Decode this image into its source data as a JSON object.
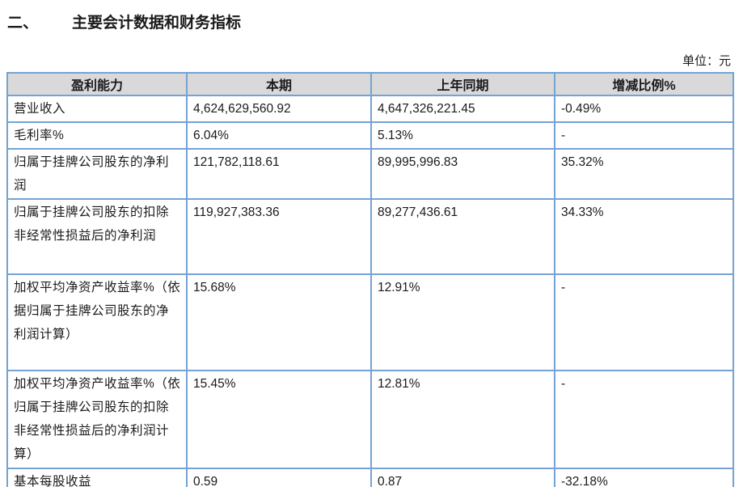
{
  "heading": {
    "number": "二、",
    "title": "主要会计数据和财务指标",
    "unit_label": "单位：元"
  },
  "table": {
    "headers": [
      "盈利能力",
      "本期",
      "上年同期",
      "增减比例%"
    ],
    "rows": [
      {
        "label": "营业收入",
        "current": "4,624,629,560.92",
        "prior": "4,647,326,221.45",
        "change": "-0.49%"
      },
      {
        "label": "毛利率%",
        "current": "6.04%",
        "prior": "5.13%",
        "change": "-"
      },
      {
        "label": "归属于挂牌公司股东的净利润",
        "current": "121,782,118.61",
        "prior": "89,995,996.83",
        "change": "35.32%"
      },
      {
        "label": "归属于挂牌公司股东的扣除非经常性损益后的净利润",
        "current": "119,927,383.36",
        "prior": "89,277,436.61",
        "change": "34.33%"
      },
      {
        "label": "加权平均净资产收益率%（依据归属于挂牌公司股东的净利润计算）",
        "current": "15.68%",
        "prior": "12.91%",
        "change": "-"
      },
      {
        "label": "加权平均净资产收益率%（依归属于挂牌公司股东的扣除非经常性损益后的净利润计算）",
        "current": "15.45%",
        "prior": "12.81%",
        "change": "-"
      },
      {
        "label": "基本每股收益",
        "current": "0.59",
        "prior": "0.87",
        "change": "-32.18%"
      }
    ]
  },
  "colors": {
    "table_border": "#74a3d4",
    "header_background": "#d9d9d9",
    "text": "#1a1a1a"
  }
}
